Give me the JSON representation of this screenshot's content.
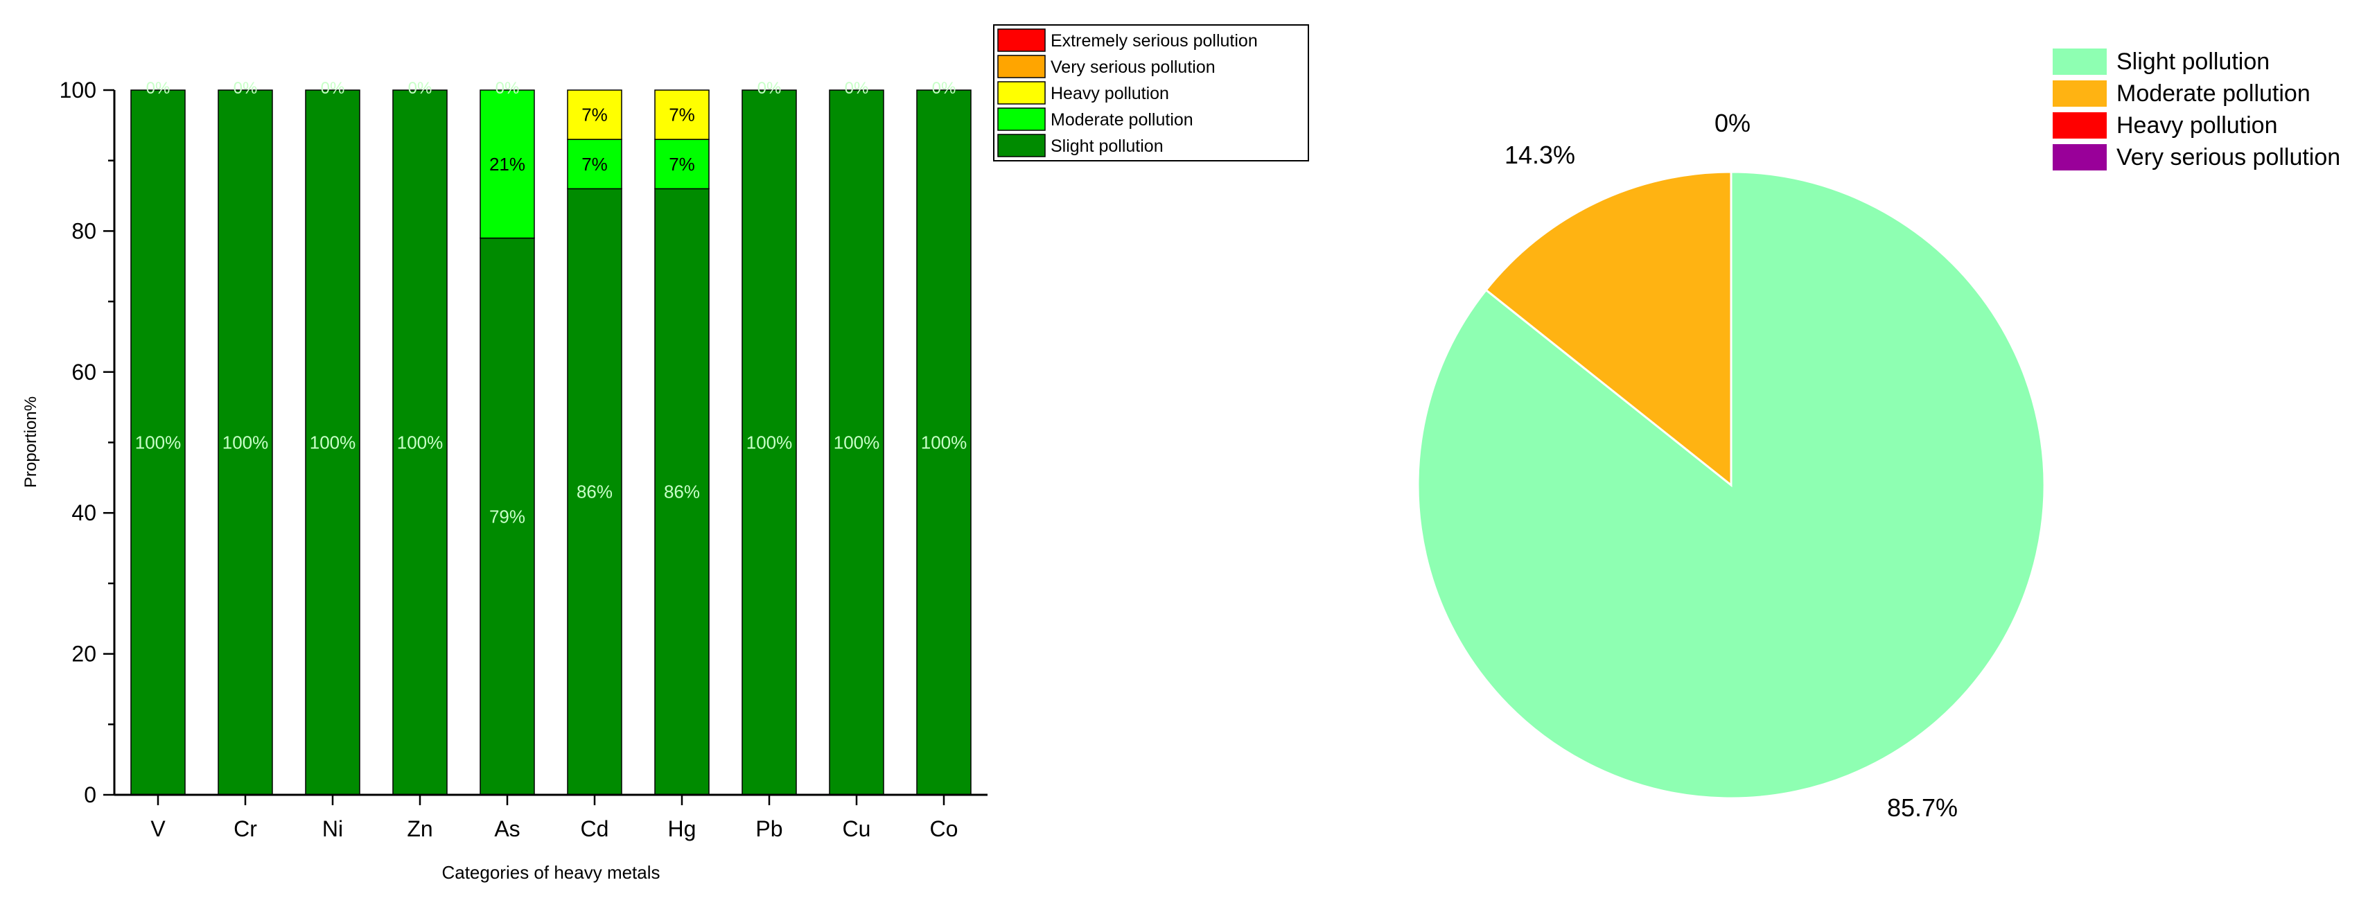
{
  "chart_data": [
    {
      "type": "bar",
      "stacked": true,
      "xlabel": "Categories of heavy metals",
      "ylabel": "Proportion%",
      "ylim": [
        0,
        100
      ],
      "yticks": [
        "0",
        "20",
        "40",
        "60",
        "80",
        "100"
      ],
      "categories": [
        "V",
        "Cr",
        "Ni",
        "Zn",
        "As",
        "Cd",
        "Hg",
        "Pb",
        "Cu",
        "Co"
      ],
      "series": [
        {
          "name": "Slight pollution",
          "color": "#008b00",
          "values": [
            100,
            100,
            100,
            100,
            79,
            86,
            86,
            100,
            100,
            100
          ],
          "labels": [
            "100%",
            "100%",
            "100%",
            "100%",
            "79%",
            "86%",
            "86%",
            "100%",
            "100%",
            "100%"
          ]
        },
        {
          "name": "Moderate pollution",
          "color": "#00ff00",
          "values": [
            0,
            0,
            0,
            0,
            21,
            7,
            7,
            0,
            0,
            0
          ],
          "labels": [
            "",
            "",
            "",
            "",
            "21%",
            "7%",
            "7%",
            "",
            "",
            ""
          ]
        },
        {
          "name": "Heavy pollution",
          "color": "#ffff00",
          "values": [
            0,
            0,
            0,
            0,
            0,
            7,
            7,
            0,
            0,
            0
          ],
          "labels": [
            "",
            "",
            "",
            "",
            "",
            "7%",
            "7%",
            "",
            "",
            ""
          ]
        },
        {
          "name": "Very serious pollution",
          "color": "#ffa500",
          "values": [
            0,
            0,
            0,
            0,
            0,
            0,
            0,
            0,
            0,
            0
          ]
        },
        {
          "name": "Extremely serious pollution",
          "color": "#ff0000",
          "values": [
            0,
            0,
            0,
            0,
            0,
            0,
            0,
            0,
            0,
            0
          ]
        }
      ],
      "top_labels": [
        "0%",
        "0%",
        "0%",
        "0%",
        "0%",
        "",
        "",
        "0%",
        "0%",
        "0%"
      ],
      "legend": [
        "Extremely serious pollution",
        "Very serious pollution",
        "Heavy pollution",
        "Moderate pollution",
        "Slight pollution"
      ],
      "legend_position": "top-right, outside plot"
    },
    {
      "type": "pie",
      "slices": [
        {
          "name": "Slight pollution",
          "value": 85.7,
          "label": "85.7%",
          "color": "#8effb2"
        },
        {
          "name": "Moderate pollution",
          "value": 14.3,
          "label": "14.3%",
          "color": "#ffb312"
        },
        {
          "name": "Heavy pollution",
          "value": 0,
          "label": "0%",
          "color": "#ff0000"
        },
        {
          "name": "Very serious pollution",
          "value": 0,
          "label": "",
          "color": "#990099"
        }
      ],
      "legend_position": "top-right"
    }
  ]
}
